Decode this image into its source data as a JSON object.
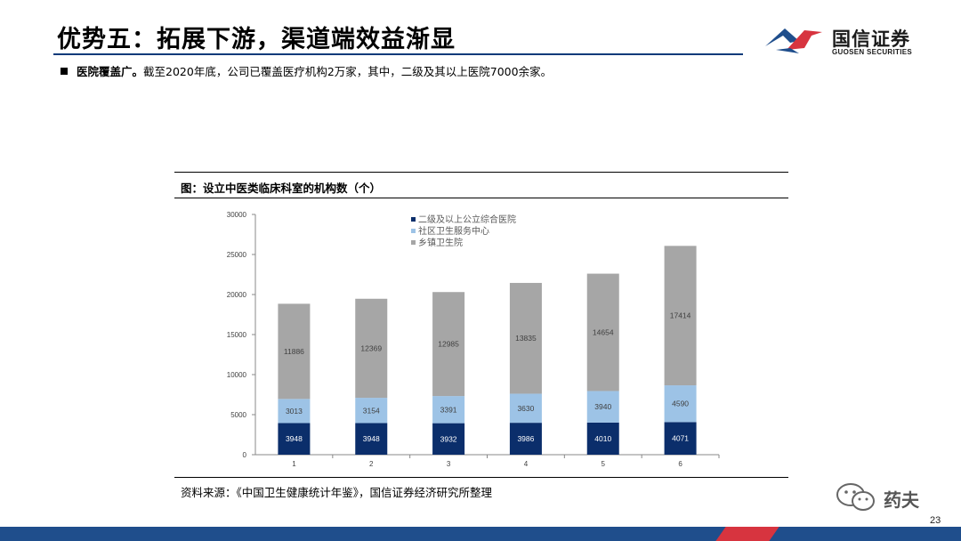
{
  "header": {
    "title": "优势五：拓展下游，渠道端效益渐显",
    "logo_cn": "国信证券",
    "logo_en": "GUOSEN SECURITIES"
  },
  "bullet": {
    "bold": "医院覆盖广。",
    "text": "截至2020年底，公司已覆盖医疗机构2万家，其中，二级及其以上医院7000余家。"
  },
  "figure": {
    "caption": "图：设立中医类临床科室的机构数（个）",
    "source": "资料来源：《中国卫生健康统计年鉴》，国信证券经济研究所整理"
  },
  "chart_data": {
    "type": "bar",
    "stacked": true,
    "categories": [
      "1",
      "2",
      "3",
      "4",
      "5",
      "6"
    ],
    "series": [
      {
        "name": "二级及以上公立综合医院",
        "values": [
          3948,
          3948,
          3932,
          3986,
          4010,
          4071
        ],
        "color": "#0b2e6b",
        "label_color": "#ffffff"
      },
      {
        "name": "社区卫生服务中心",
        "values": [
          3013,
          3154,
          3391,
          3630,
          3940,
          4590
        ],
        "color": "#9dc3e6",
        "label_color": "#404040"
      },
      {
        "name": "乡镇卫生院",
        "values": [
          11886,
          12369,
          12985,
          13835,
          14654,
          17414
        ],
        "color": "#a6a6a6",
        "label_color": "#404040"
      }
    ],
    "ylim": [
      0,
      30000
    ],
    "yticks": [
      "0",
      "5000",
      "10000",
      "15000",
      "20000",
      "25000",
      "30000"
    ],
    "legend_position": "top-left",
    "grid": false
  },
  "watermark": {
    "text": "药夫"
  },
  "page_number": "23"
}
